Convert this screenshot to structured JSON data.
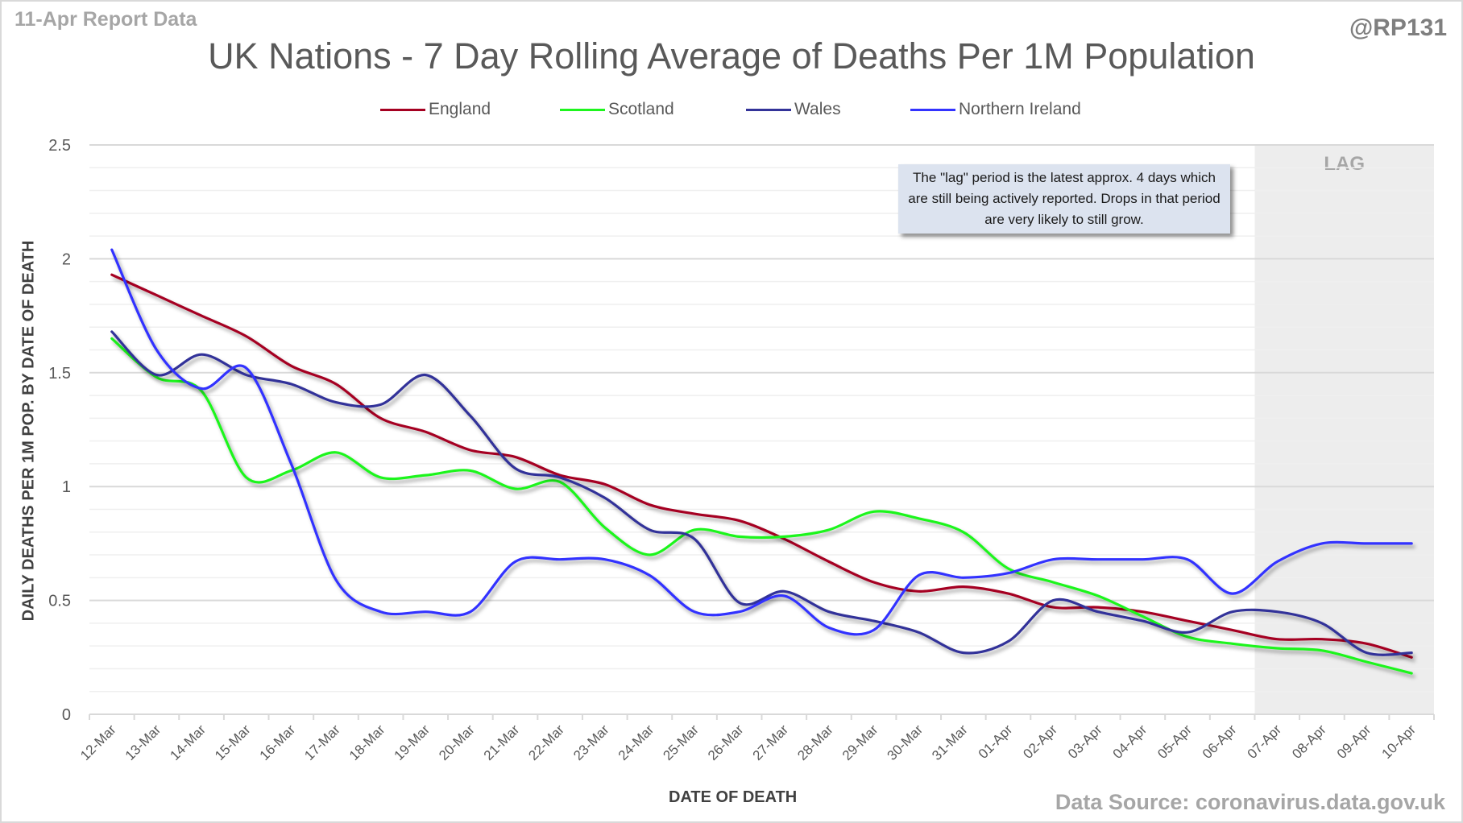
{
  "header": {
    "report_label": "11-Apr Report Data",
    "handle": "@RP131",
    "title": "UK Nations - 7 Day Rolling Average of Deaths Per 1M Population"
  },
  "footer": {
    "source": "Data Source: coronavirus.data.gov.uk"
  },
  "annotation": {
    "text": "The \"lag\" period is the latest approx. 4 days which are still being actively reported. Drops in that period are very likely to still grow."
  },
  "lag_band": {
    "label": "LAG",
    "start_category": "07-Apr",
    "end_category": "10-Apr"
  },
  "chart_data": {
    "type": "line",
    "title": "UK Nations - 7 Day Rolling Average of Deaths Per 1M Population",
    "xlabel": "DATE OF DEATH",
    "ylabel": "DAILY DEATHS PER 1M POP. BY DATE OF DEATH",
    "ylim": [
      0,
      2.5
    ],
    "yticks": [
      "0",
      "0.5",
      "1",
      "1.5",
      "2",
      "2.5"
    ],
    "ytick_values": [
      0,
      0.5,
      1,
      1.5,
      2,
      2.5
    ],
    "minor_grid_step": 0.1,
    "grid": true,
    "legend_position": "top",
    "smooth": true,
    "categories": [
      "12-Mar",
      "13-Mar",
      "14-Mar",
      "15-Mar",
      "16-Mar",
      "17-Mar",
      "18-Mar",
      "19-Mar",
      "20-Mar",
      "21-Mar",
      "22-Mar",
      "23-Mar",
      "24-Mar",
      "25-Mar",
      "26-Mar",
      "27-Mar",
      "28-Mar",
      "29-Mar",
      "30-Mar",
      "31-Mar",
      "01-Apr",
      "02-Apr",
      "03-Apr",
      "04-Apr",
      "05-Apr",
      "06-Apr",
      "07-Apr",
      "08-Apr",
      "09-Apr",
      "10-Apr"
    ],
    "series": [
      {
        "name": "England",
        "color": "#a50021",
        "values": [
          1.93,
          1.84,
          1.75,
          1.66,
          1.53,
          1.45,
          1.3,
          1.24,
          1.16,
          1.13,
          1.05,
          1.01,
          0.92,
          0.88,
          0.85,
          0.77,
          0.67,
          0.58,
          0.54,
          0.56,
          0.53,
          0.47,
          0.47,
          0.45,
          0.41,
          0.37,
          0.33,
          0.33,
          0.31,
          0.25
        ]
      },
      {
        "name": "Scotland",
        "color": "#1ef51e",
        "values": [
          1.65,
          1.48,
          1.42,
          1.04,
          1.07,
          1.15,
          1.04,
          1.05,
          1.07,
          0.99,
          1.02,
          0.82,
          0.7,
          0.81,
          0.78,
          0.78,
          0.81,
          0.89,
          0.86,
          0.8,
          0.64,
          0.58,
          0.52,
          0.43,
          0.34,
          0.31,
          0.29,
          0.28,
          0.23,
          0.18
        ]
      },
      {
        "name": "Wales",
        "color": "#333399",
        "values": [
          1.68,
          1.49,
          1.58,
          1.49,
          1.45,
          1.37,
          1.36,
          1.49,
          1.31,
          1.08,
          1.04,
          0.95,
          0.81,
          0.77,
          0.49,
          0.54,
          0.45,
          0.41,
          0.36,
          0.27,
          0.32,
          0.5,
          0.45,
          0.41,
          0.36,
          0.45,
          0.45,
          0.4,
          0.27,
          0.27
        ]
      },
      {
        "name": "Northern Ireland",
        "color": "#3333ff",
        "values": [
          2.04,
          1.6,
          1.43,
          1.52,
          1.1,
          0.59,
          0.45,
          0.45,
          0.45,
          0.67,
          0.68,
          0.68,
          0.61,
          0.45,
          0.45,
          0.52,
          0.38,
          0.37,
          0.61,
          0.6,
          0.62,
          0.68,
          0.68,
          0.68,
          0.68,
          0.53,
          0.67,
          0.75,
          0.75,
          0.75
        ]
      }
    ]
  }
}
